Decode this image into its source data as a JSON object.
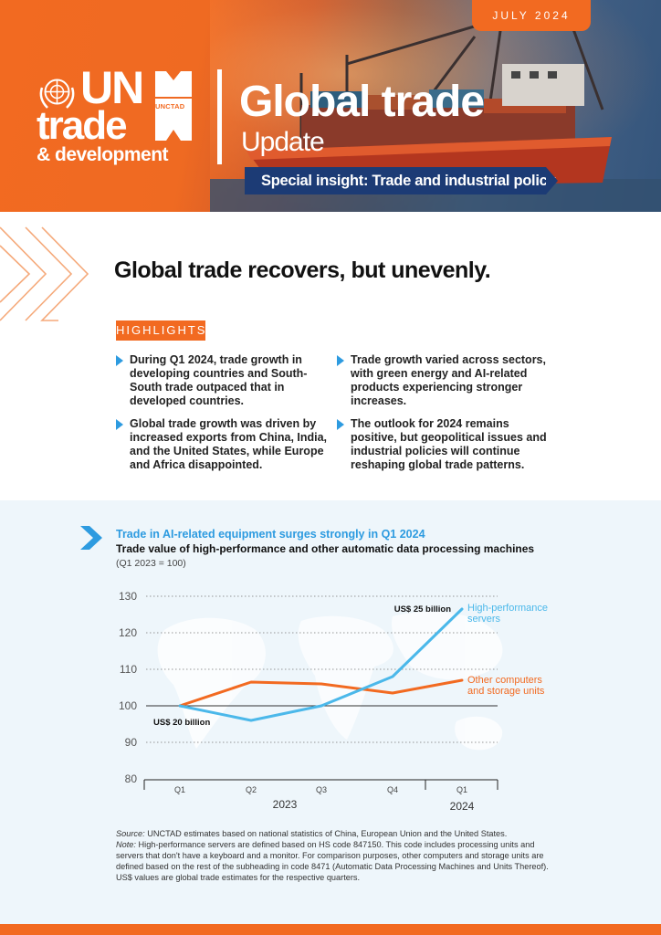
{
  "header": {
    "date": "JULY 2024",
    "brand_un": "UN",
    "brand_trade": "trade",
    "brand_development": "& development",
    "brand_unctad": "UNCTAD",
    "title": "Global trade",
    "subtitle": "Update",
    "banner": "Special insight: Trade and industrial policy"
  },
  "headline": "Global trade recovers, but unevenly.",
  "highlights": {
    "label": "HIGHLIGHTS",
    "items": [
      "During Q1 2024, trade growth in developing countries and South-South trade outpaced that in developed countries.",
      "Global trade growth was driven by increased exports from China, India, and the United States, while Europe and Africa disappointed.",
      "Trade growth varied across sectors, with green energy and AI-related products experiencing stronger increases.",
      "The outlook for 2024 remains positive, but geopolitical issues and industrial policies will continue reshaping global trade patterns."
    ]
  },
  "chart_data": {
    "type": "line",
    "title": "Trade in AI-related equipment surges strongly in Q1 2024",
    "subtitle": "Trade value of high-performance and other automatic data processing machines",
    "note": "(Q1 2023 = 100)",
    "categories": [
      "Q1",
      "Q2",
      "Q3",
      "Q4",
      "Q1"
    ],
    "years": [
      "2023",
      "2024"
    ],
    "ylim": [
      80,
      130
    ],
    "yticks": [
      80,
      90,
      100,
      110,
      120,
      130
    ],
    "series": [
      {
        "name": "High-performance servers",
        "label_line1": "High-performance",
        "label_line2": "servers",
        "values": [
          100,
          96,
          100,
          108,
          126.5
        ],
        "color": "#4bb8ea"
      },
      {
        "name": "Other computers and storage units",
        "label_line1": "Other computers",
        "label_line2": "and storage units",
        "values": [
          100,
          106.5,
          106,
          103.5,
          107
        ],
        "color": "#f26a21"
      }
    ],
    "annotations": {
      "end": "US$ 25 billion",
      "start": "US$ 20 billion"
    }
  },
  "footnotes": {
    "source_label": "Source:",
    "source_text": " UNCTAD estimates based on national statistics of China, European Union and the United States.",
    "note_label": "Note:",
    "note_text": " High-performance servers are defined based on HS code 847150. This code includes processing units and servers that don't have a keyboard and a monitor. For comparison purposes, other computers and storage units are defined based on the rest of the subheading in code 8471 (Automatic Data Processing Machines and Units Thereof). US$ values are global trade estimates for the respective quarters."
  },
  "colors": {
    "orange": "#f26a21",
    "navy": "#1c3b75",
    "blue": "#2d9be0"
  }
}
